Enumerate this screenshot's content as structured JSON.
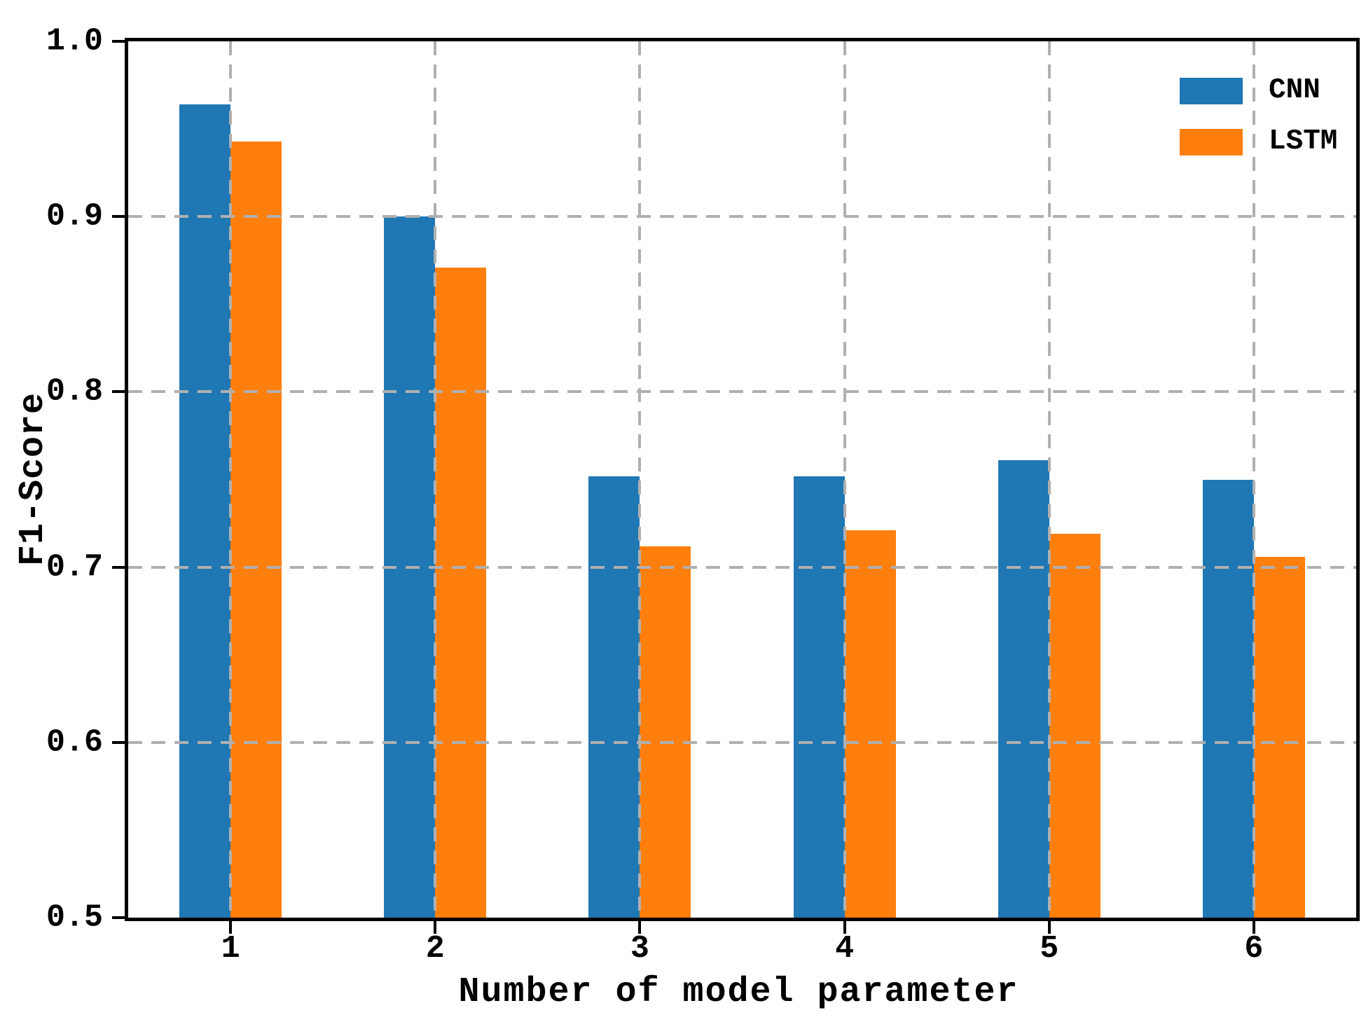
{
  "figure": {
    "background": "#ffffff",
    "axis_color": "#000000",
    "grid_color": "#b0b0b0",
    "grid_style": "dashed"
  },
  "legend": {
    "position": "upper-right",
    "items": [
      {
        "label": "CNN",
        "color": "#1f77b4"
      },
      {
        "label": "LSTM",
        "color": "#ff7f0e"
      }
    ]
  },
  "chart_data": {
    "type": "bar",
    "title": "",
    "xlabel": "Number of model parameter",
    "ylabel": "F1-Score",
    "categories": [
      "1",
      "2",
      "3",
      "4",
      "5",
      "6"
    ],
    "series": [
      {
        "name": "CNN",
        "color": "#1f77b4",
        "values": [
          0.964,
          0.9,
          0.752,
          0.752,
          0.761,
          0.75
        ]
      },
      {
        "name": "LSTM",
        "color": "#ff7f0e",
        "values": [
          0.943,
          0.871,
          0.712,
          0.721,
          0.719,
          0.706
        ]
      }
    ],
    "ylim": [
      0.5,
      1.0
    ],
    "xlim": [
      0.5,
      6.5
    ],
    "yticks": [
      0.5,
      0.6,
      0.7,
      0.8,
      0.9,
      1.0
    ],
    "ytick_labels": [
      "0.5",
      "0.6",
      "0.7",
      "0.8",
      "0.9",
      "1.0"
    ],
    "xtick_labels": [
      "1",
      "2",
      "3",
      "4",
      "5",
      "6"
    ],
    "bar_width_fraction": 0.25,
    "grid": "on",
    "grid_over_bars": true,
    "legend_position": "upper right"
  }
}
